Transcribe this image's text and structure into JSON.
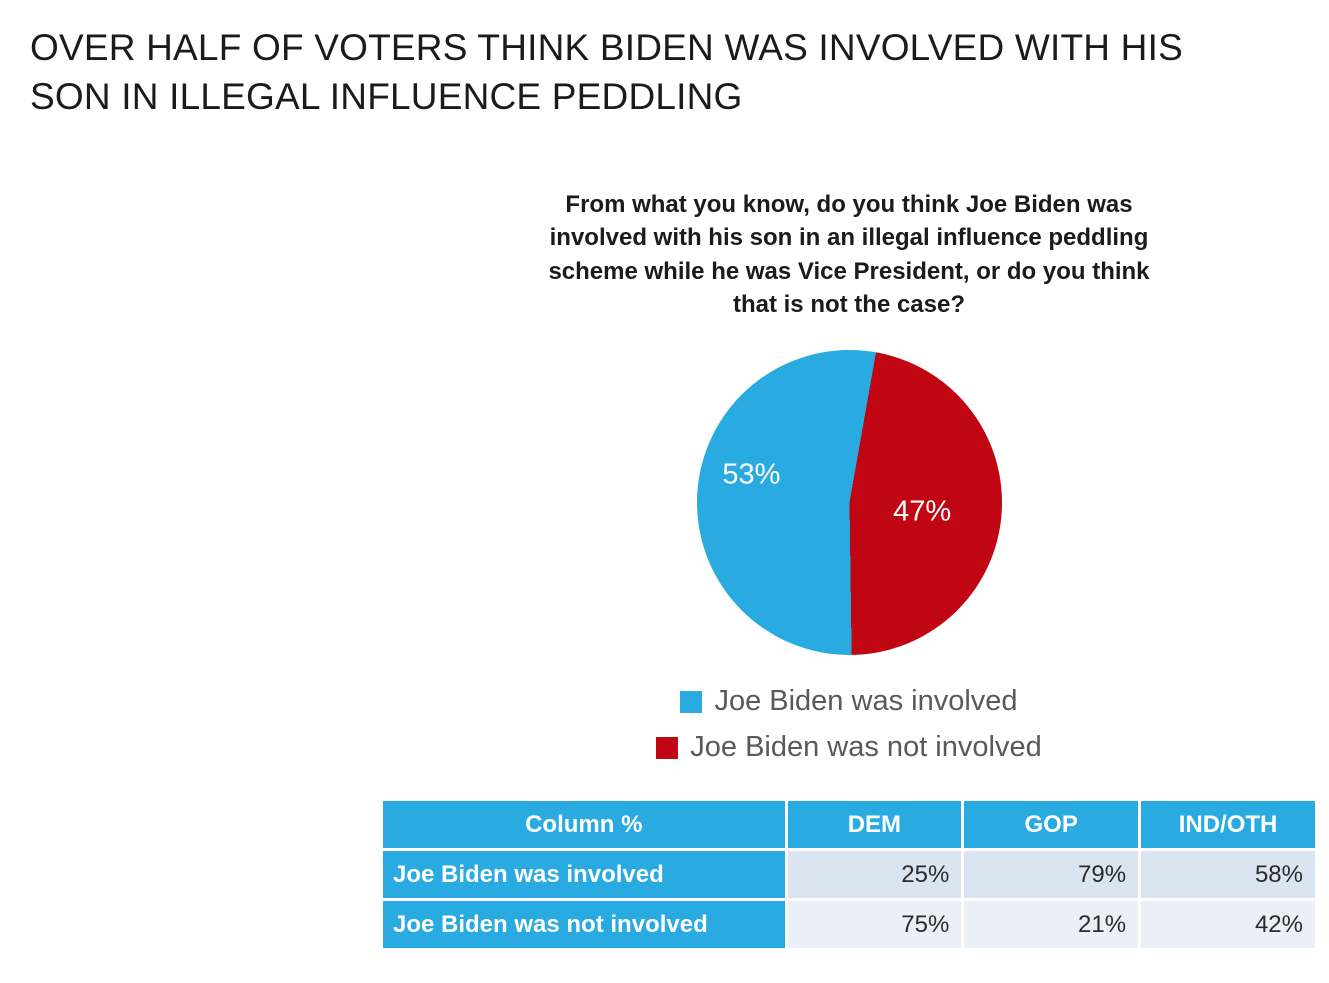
{
  "title": "OVER HALF OF VOTERS THINK BIDEN WAS INVOLVED WITH HIS SON IN ILLEGAL INFLUENCE PEDDLING",
  "colors": {
    "blue": "#29ABE2",
    "red": "#C00612",
    "legend_text": "#595959",
    "table_row_odd_bg": "#DBE5F1",
    "table_row_even_bg": "#EAF0F8",
    "pie_label_text": "#FFFFFF"
  },
  "chart_data": {
    "type": "pie",
    "title": "From what you know, do you think Joe Biden was involved with his son in an illegal influence peddling scheme while he was Vice President, or do you think that is not the case?",
    "start_angle_deg": 10,
    "slices": [
      {
        "label": "Joe Biden was involved",
        "value": 53,
        "display": "53%",
        "color": "#29ABE2"
      },
      {
        "label": "Joe Biden was not involved",
        "value": 47,
        "display": "47%",
        "color": "#C00612"
      }
    ],
    "legend_position": "bottom",
    "table": {
      "header": [
        "Column %",
        "DEM",
        "GOP",
        "IND/OTH"
      ],
      "rows": [
        {
          "label": "Joe Biden was involved",
          "values": [
            "25%",
            "79%",
            "58%"
          ]
        },
        {
          "label": "Joe Biden was not involved",
          "values": [
            "75%",
            "21%",
            "42%"
          ]
        }
      ]
    }
  }
}
